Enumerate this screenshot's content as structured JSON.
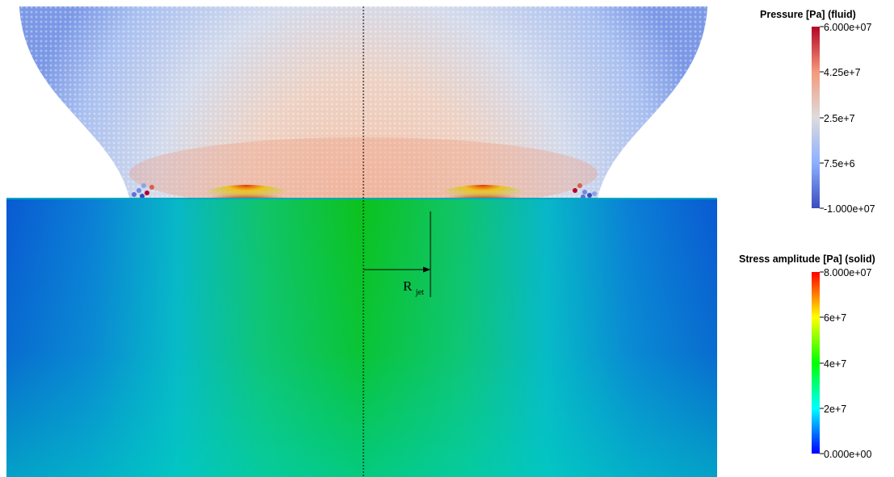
{
  "annotation": {
    "radius_label": "R",
    "radius_subscript": "jet"
  },
  "colorbars": [
    {
      "id": "pressure",
      "title": "Pressure [Pa] (fluid)",
      "tick_labels": [
        "6.000e+07",
        "4.25e+7",
        "2.5e+7",
        "7.5e+6",
        "-1.000e+07"
      ],
      "tick_values": [
        60000000,
        42500000,
        25000000,
        7500000,
        -10000000
      ],
      "range": [
        -10000000,
        60000000
      ],
      "colors": [
        "#3b4cc0",
        "#8db0fe",
        "#dddcdc",
        "#f49a7b",
        "#b40426"
      ]
    },
    {
      "id": "stress",
      "title": "Stress amplitude [Pa] (solid)",
      "tick_labels": [
        "8.000e+07",
        "6e+7",
        "4e+7",
        "2e+7",
        "0.000e+00"
      ],
      "tick_values": [
        80000000,
        60000000,
        40000000,
        20000000,
        0
      ],
      "range": [
        0,
        80000000
      ],
      "colors": [
        "#0000ff",
        "#00ffff",
        "#00ff00",
        "#ffff00",
        "#ff0000"
      ]
    }
  ]
}
